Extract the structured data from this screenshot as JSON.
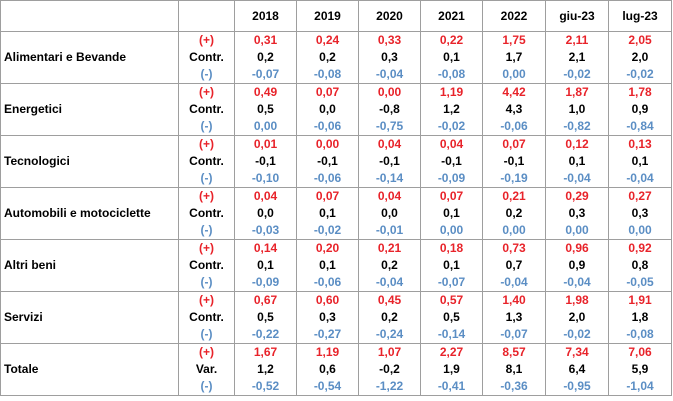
{
  "headers": [
    "",
    "",
    "2018",
    "2019",
    "2020",
    "2021",
    "2022",
    "giu-23",
    "lug-23"
  ],
  "groups": [
    {
      "name": "Alimentari e Bevande",
      "rows": [
        {
          "type": "(+)",
          "values": [
            "0,31",
            "0,24",
            "0,33",
            "0,22",
            "1,75",
            "2,11",
            "2,05"
          ]
        },
        {
          "type": "Contr.",
          "values": [
            "0,2",
            "0,2",
            "0,3",
            "0,1",
            "1,7",
            "2,1",
            "2,0"
          ]
        },
        {
          "type": "(-)",
          "values": [
            "-0,07",
            "-0,08",
            "-0,04",
            "-0,08",
            "0,00",
            "-0,02",
            "-0,02"
          ]
        }
      ]
    },
    {
      "name": "Energetici",
      "rows": [
        {
          "type": "(+)",
          "values": [
            "0,49",
            "0,07",
            "0,00",
            "1,19",
            "4,42",
            "1,87",
            "1,78"
          ]
        },
        {
          "type": "Contr.",
          "values": [
            "0,5",
            "0,0",
            "-0,8",
            "1,2",
            "4,3",
            "1,0",
            "0,9"
          ]
        },
        {
          "type": "(-)",
          "values": [
            "0,00",
            "-0,06",
            "-0,75",
            "-0,02",
            "-0,06",
            "-0,82",
            "-0,84"
          ]
        }
      ]
    },
    {
      "name": "Tecnologici",
      "rows": [
        {
          "type": "(+)",
          "values": [
            "0,01",
            "0,00",
            "0,04",
            "0,04",
            "0,07",
            "0,12",
            "0,13"
          ]
        },
        {
          "type": "Contr.",
          "values": [
            "-0,1",
            "-0,1",
            "-0,1",
            "-0,1",
            "-0,1",
            "0,1",
            "0,1"
          ]
        },
        {
          "type": "(-)",
          "values": [
            "-0,10",
            "-0,06",
            "-0,14",
            "-0,09",
            "-0,19",
            "-0,04",
            "-0,04"
          ]
        }
      ]
    },
    {
      "name": "Automobili e motociclette",
      "rows": [
        {
          "type": "(+)",
          "values": [
            "0,04",
            "0,07",
            "0,04",
            "0,07",
            "0,21",
            "0,29",
            "0,27"
          ]
        },
        {
          "type": "Contr.",
          "values": [
            "0,0",
            "0,1",
            "0,0",
            "0,1",
            "0,2",
            "0,3",
            "0,3"
          ]
        },
        {
          "type": "(-)",
          "values": [
            "-0,03",
            "-0,02",
            "-0,01",
            "0,00",
            "0,00",
            "0,00",
            "0,00"
          ]
        }
      ]
    },
    {
      "name": "Altri beni",
      "rows": [
        {
          "type": "(+)",
          "values": [
            "0,14",
            "0,20",
            "0,21",
            "0,18",
            "0,73",
            "0,96",
            "0,92"
          ]
        },
        {
          "type": "Contr.",
          "values": [
            "0,1",
            "0,1",
            "0,2",
            "0,1",
            "0,7",
            "0,9",
            "0,8"
          ]
        },
        {
          "type": "(-)",
          "values": [
            "-0,09",
            "-0,06",
            "-0,04",
            "-0,07",
            "-0,04",
            "-0,04",
            "-0,05"
          ]
        }
      ]
    },
    {
      "name": "Servizi",
      "rows": [
        {
          "type": "(+)",
          "values": [
            "0,67",
            "0,60",
            "0,45",
            "0,57",
            "1,40",
            "1,98",
            "1,91"
          ]
        },
        {
          "type": "Contr.",
          "values": [
            "0,5",
            "0,3",
            "0,2",
            "0,5",
            "1,3",
            "2,0",
            "1,8"
          ]
        },
        {
          "type": "(-)",
          "values": [
            "-0,22",
            "-0,27",
            "-0,24",
            "-0,14",
            "-0,07",
            "-0,02",
            "-0,08"
          ]
        }
      ]
    },
    {
      "name": "Totale",
      "rows": [
        {
          "type": "(+)",
          "values": [
            "1,67",
            "1,19",
            "1,07",
            "2,27",
            "8,57",
            "7,34",
            "7,06"
          ]
        },
        {
          "type": "Var.",
          "values": [
            "1,2",
            "0,6",
            "-0,2",
            "1,9",
            "8,1",
            "6,4",
            "5,9"
          ]
        },
        {
          "type": "(-)",
          "values": [
            "-0,52",
            "-0,54",
            "-1,22",
            "-0,41",
            "-0,36",
            "-0,95",
            "-1,04"
          ]
        }
      ]
    }
  ]
}
